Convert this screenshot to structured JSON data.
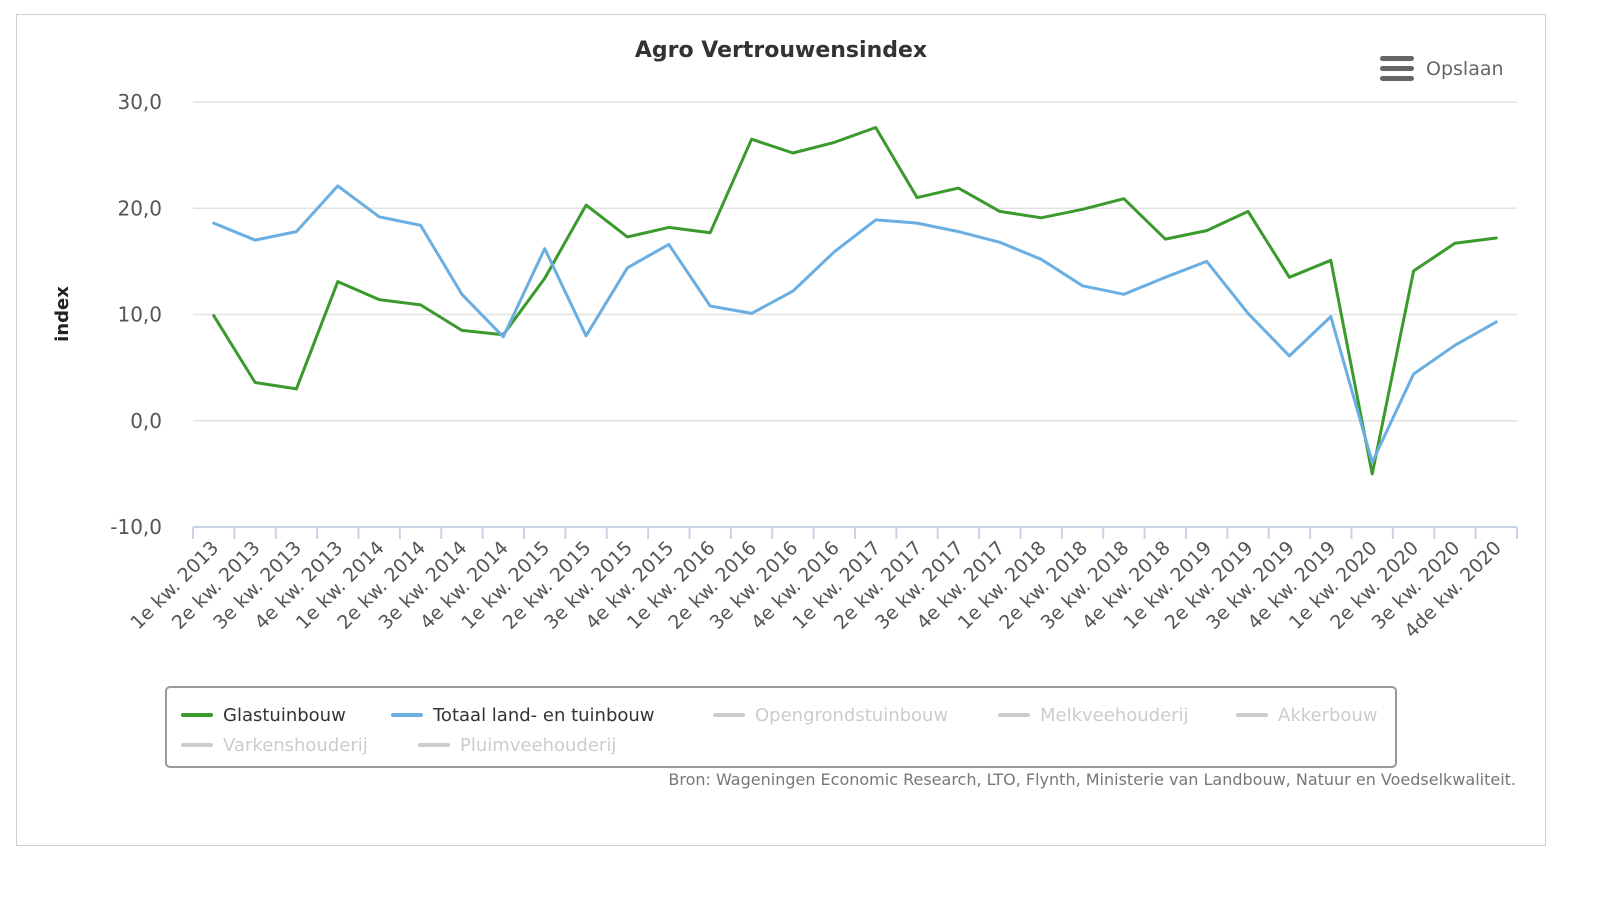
{
  "save_label": "Opslaan",
  "source": "Bron: Wageningen Economic Research, LTO, Flynth, Ministerie van Landbouw, Natuur en Voedselkwaliteit.",
  "chart_data": {
    "type": "line",
    "title": "Agro Vertrouwensindex",
    "xlabel": "",
    "ylabel": "index",
    "ylim": [
      -10,
      30
    ],
    "yticks": [
      "30,0",
      "20,0",
      "10,0",
      "0,0",
      "-10,0"
    ],
    "ytick_values": [
      30,
      20,
      10,
      0,
      -10
    ],
    "grid": true,
    "legend_position": "bottom",
    "categories": [
      "1e kw. 2013",
      "2e kw. 2013",
      "3e kw. 2013",
      "4e kw. 2013",
      "1e kw. 2014",
      "2e kw. 2014",
      "3e kw. 2014",
      "4e kw. 2014",
      "1e kw. 2015",
      "2e kw. 2015",
      "3e kw. 2015",
      "4e kw. 2015",
      "1e kw. 2016",
      "2e kw. 2016",
      "3e kw. 2016",
      "4e kw. 2016",
      "1e kw. 2017",
      "2e kw. 2017",
      "3e kw. 2017",
      "4e kw. 2017",
      "1e kw. 2018",
      "2e kw. 2018",
      "3e kw. 2018",
      "4e kw. 2018",
      "1e kw. 2019",
      "2e kw. 2019",
      "3e kw. 2019",
      "4e kw. 2019",
      "1e kw. 2020",
      "2e kw. 2020",
      "3e kw. 2020",
      "4de kw. 2020"
    ],
    "series": [
      {
        "name": "Glastuinbouw",
        "color": "#3a9a2c",
        "visible": true,
        "values": [
          9.9,
          3.6,
          3.0,
          13.1,
          11.4,
          10.9,
          8.5,
          8.1,
          13.4,
          20.3,
          17.3,
          18.2,
          17.7,
          26.5,
          25.2,
          26.2,
          27.6,
          21.0,
          21.9,
          19.7,
          19.1,
          19.9,
          20.9,
          17.1,
          17.9,
          19.7,
          13.5,
          15.1,
          -5.0,
          14.1,
          16.7,
          17.2
        ]
      },
      {
        "name": "Totaal land- en tuinbouw",
        "color": "#6aaee2",
        "visible": true,
        "values": [
          18.6,
          17.0,
          17.8,
          22.1,
          19.2,
          18.4,
          11.9,
          7.9,
          16.2,
          8.0,
          14.4,
          16.6,
          10.8,
          10.1,
          12.2,
          15.9,
          18.9,
          18.6,
          17.8,
          16.8,
          15.2,
          12.7,
          11.9,
          13.5,
          15.0,
          10.1,
          6.1,
          9.8,
          -3.9,
          4.4,
          7.1,
          9.3
        ]
      },
      {
        "name": "Opengrondstuinbouw",
        "color": "#cccccc",
        "visible": false
      },
      {
        "name": "Melkveehouderij",
        "color": "#cccccc",
        "visible": false
      },
      {
        "name": "Akkerbouw",
        "color": "#cccccc",
        "visible": false
      },
      {
        "name": "Varkenshouderij",
        "color": "#cccccc",
        "visible": false
      },
      {
        "name": "Pluimveehouderij",
        "color": "#cccccc",
        "visible": false
      }
    ]
  }
}
